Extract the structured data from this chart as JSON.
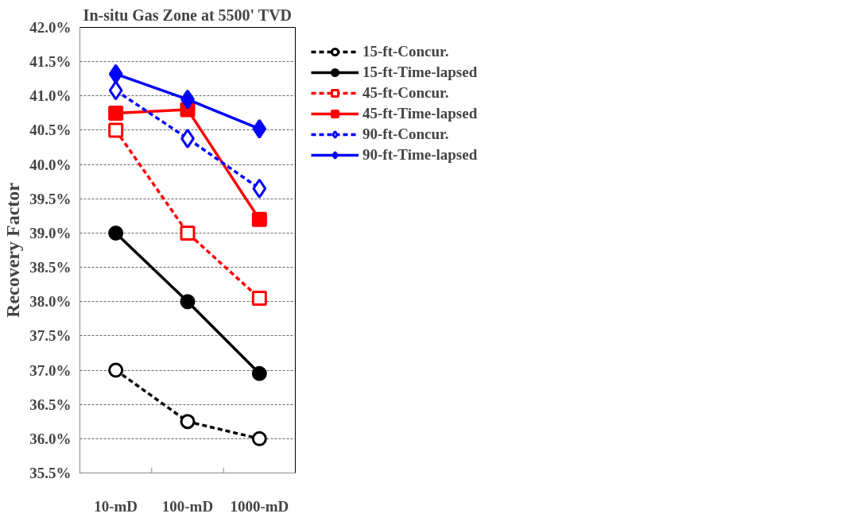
{
  "chart_data": {
    "type": "line",
    "title": "In-situ Gas Zone at 5500' TVD",
    "ylabel": "Recovery Factor",
    "categories": [
      "10-mD",
      "100-mD",
      "1000-mD"
    ],
    "series": [
      {
        "name": "15-ft-Concur.",
        "color": "#000000",
        "values": [
          37.0,
          36.25,
          36.0
        ],
        "marker": "circle",
        "line_style": "dashed"
      },
      {
        "name": "15-ft-Time-lapsed",
        "color": "#000000",
        "values": [
          39.0,
          38.0,
          36.95
        ],
        "marker": "circle",
        "line_style": "solid"
      },
      {
        "name": "45-ft-Concur.",
        "color": "#ff0000",
        "values": [
          40.5,
          39.0,
          38.05
        ],
        "marker": "square",
        "line_style": "dashed"
      },
      {
        "name": "45-ft-Time-lapsed",
        "color": "#ff0000",
        "values": [
          40.75,
          40.8,
          39.2
        ],
        "marker": "square",
        "line_style": "solid"
      },
      {
        "name": "90-ft-Concur.",
        "color": "#0000ff",
        "values": [
          41.08,
          40.38,
          39.65
        ],
        "marker": "diamond",
        "line_style": "dashed"
      },
      {
        "name": "90-ft-Time-lapsed",
        "color": "#0000ff",
        "values": [
          41.32,
          40.95,
          40.52
        ],
        "marker": "diamond",
        "line_style": "solid"
      }
    ],
    "ylim": [
      35.5,
      42.0
    ],
    "yticks": [
      {
        "value": 35.5,
        "label": "35.5%"
      },
      {
        "value": 36.0,
        "label": "36.0%"
      },
      {
        "value": 36.5,
        "label": "36.5%"
      },
      {
        "value": 37.0,
        "label": "37.0%"
      },
      {
        "value": 37.5,
        "label": "37.5%"
      },
      {
        "value": 38.0,
        "label": "38.0%"
      },
      {
        "value": 38.5,
        "label": "38.5%"
      },
      {
        "value": 39.0,
        "label": "39.0%"
      },
      {
        "value": 39.5,
        "label": "39.5%"
      },
      {
        "value": 40.0,
        "label": "40.0%"
      },
      {
        "value": 40.5,
        "label": "40.5%"
      },
      {
        "value": 41.0,
        "label": "41.0%"
      },
      {
        "value": 41.5,
        "label": "41.5%"
      },
      {
        "value": 42.0,
        "label": "42.0%"
      }
    ],
    "grid": "y",
    "legend": "right"
  }
}
